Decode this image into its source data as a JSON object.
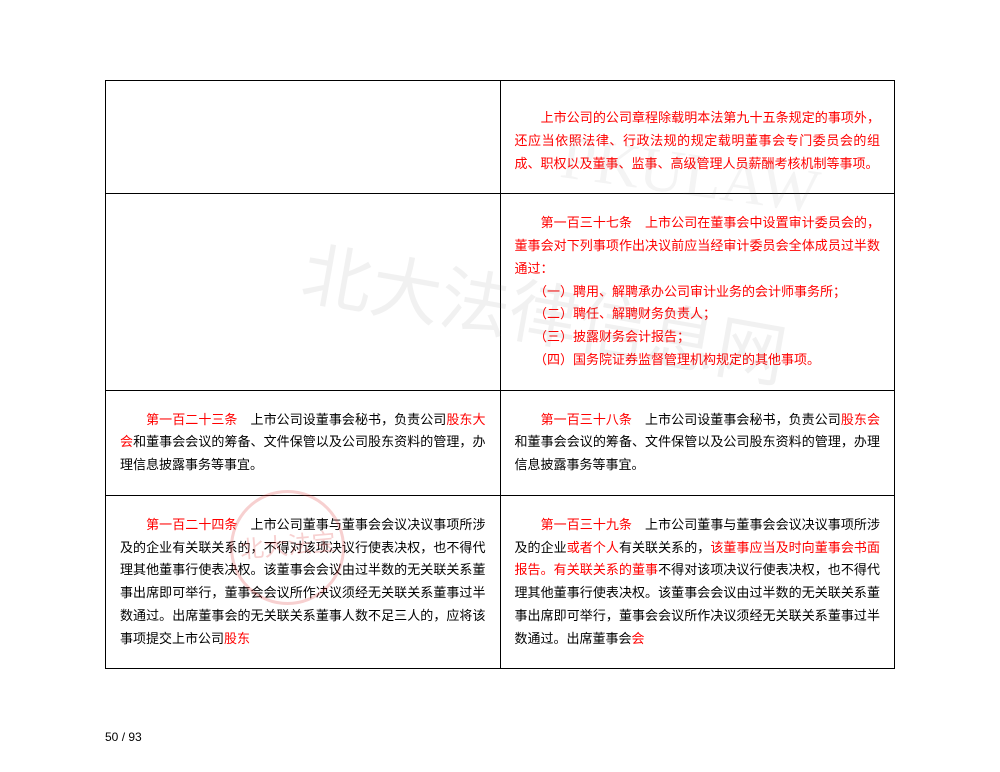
{
  "page": {
    "current": "50",
    "total": "93"
  },
  "watermark": {
    "text1": "北大法律信息网",
    "text2": "PKULAW",
    "seal": "北大法宝"
  },
  "table": {
    "rows": [
      {
        "left": {
          "segments": []
        },
        "right": {
          "segments": [
            {
              "text": "　　上市公司的公司章程除载明本法第九十五条规定的事项外，还应当依照法律、行政法规的规定载明董事会专门委员会的组成、职权以及董事、监事、高级管理人员薪酬考核机制等事项。",
              "color": "red"
            }
          ]
        }
      },
      {
        "left": {
          "segments": []
        },
        "right": {
          "segments": [
            {
              "text": "　　第一百三十七条　上市公司在董事会中设置审计委员会的，董事会对下列事项作出决议前应当经审计委员会全体成员过半数通过：",
              "color": "red",
              "br": true
            },
            {
              "text": "　　（一）聘用、解聘承办公司审计业务的会计师事务所；",
              "color": "red",
              "br": true
            },
            {
              "text": "　　（二）聘任、解聘财务负责人；",
              "color": "red",
              "br": true
            },
            {
              "text": "　　（三）披露财务会计报告；",
              "color": "red",
              "br": true
            },
            {
              "text": "　　（四）国务院证券监督管理机构规定的其他事项。",
              "color": "red"
            }
          ]
        }
      },
      {
        "left": {
          "segments": [
            {
              "text": "　　",
              "color": "black"
            },
            {
              "text": "第一百二十三条",
              "color": "red"
            },
            {
              "text": "　上市公司设董事会秘书，负责公司",
              "color": "black"
            },
            {
              "text": "股东大会",
              "color": "red"
            },
            {
              "text": "和董事会会议的筹备、文件保管以及公司股东资料的管理，办理信息披露事务等事宜。",
              "color": "black"
            }
          ]
        },
        "right": {
          "segments": [
            {
              "text": "　　",
              "color": "black"
            },
            {
              "text": "第一百三十八条",
              "color": "red"
            },
            {
              "text": "　上市公司设董事会秘书，负责公司",
              "color": "black"
            },
            {
              "text": "股东会",
              "color": "red"
            },
            {
              "text": "和董事会会议的筹备、文件保管以及公司股东资料的管理，办理信息披露事务等事宜。",
              "color": "black"
            }
          ]
        }
      },
      {
        "left": {
          "segments": [
            {
              "text": "　　",
              "color": "black"
            },
            {
              "text": "第一百二十四条",
              "color": "red"
            },
            {
              "text": "　上市公司董事与董事会会议决议事项所涉及的企业有关联关系的，不得对该项决议行使表决权，也不得代理其他董事行使表决权。该董事会会议由过半数的无关联关系董事出席即可举行，董事会会议所作决议须经无关联关系董事过半数通过。出席董事会的无关联关系董事人数不足三人的，应将该事项提交上市公司",
              "color": "black"
            },
            {
              "text": "股东",
              "color": "red"
            }
          ]
        },
        "right": {
          "segments": [
            {
              "text": "　　",
              "color": "black"
            },
            {
              "text": "第一百三十九条",
              "color": "red"
            },
            {
              "text": "　上市公司董事与董事会会议决议事项所涉及的企业",
              "color": "black"
            },
            {
              "text": "或者个人",
              "color": "red"
            },
            {
              "text": "有关联关系的，",
              "color": "black"
            },
            {
              "text": "该董事应当及时向董事会书面报告。有关联关系的董事",
              "color": "red"
            },
            {
              "text": "不得对该项决议行使表决权，也不得代理其他董事行使表决权。该董事会会议由过半数的无关联关系董事出席即可举行，董事会会议所作决议须经无关联关系董事过半数通过。出席董事会",
              "color": "black"
            },
            {
              "text": "会",
              "color": "red"
            }
          ]
        }
      }
    ]
  }
}
